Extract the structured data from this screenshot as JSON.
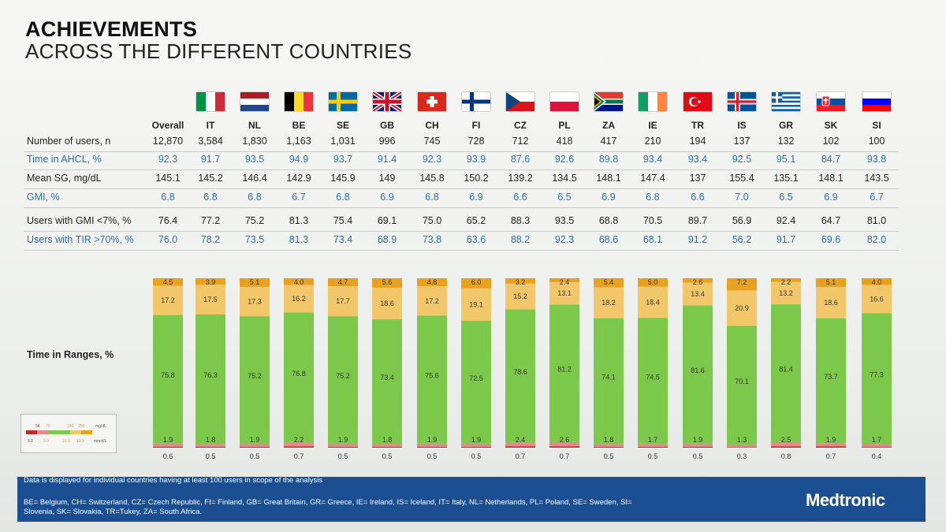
{
  "header": {
    "title": "ACHIEVEMENTS",
    "subtitle": "ACROSS THE DIFFERENT COUNTRIES"
  },
  "columns": [
    "Overall",
    "IT",
    "NL",
    "BE",
    "SE",
    "GB",
    "CH",
    "FI",
    "CZ",
    "PL",
    "ZA",
    "IE",
    "TR",
    "IS",
    "GR",
    "SK",
    "SI"
  ],
  "rows": [
    {
      "label": "Number of users, n",
      "values": [
        "12,870",
        "3,584",
        "1,830",
        "1,163",
        "1,031",
        "996",
        "745",
        "728",
        "712",
        "418",
        "417",
        "210",
        "194",
        "137",
        "132",
        "102",
        "100"
      ]
    },
    {
      "label": "Time in AHCL, %",
      "values": [
        "92.3",
        "91.7",
        "93.5",
        "94.9",
        "93.7",
        "91.4",
        "92.3",
        "93.9",
        "87.6",
        "92.6",
        "89.8",
        "93.4",
        "93.4",
        "92.5",
        "95.1",
        "84.7",
        "93.8"
      ]
    },
    {
      "label": "Mean SG, mg/dL",
      "values": [
        "145.1",
        "145.2",
        "146.4",
        "142.9",
        "145.9",
        "149",
        "145.8",
        "150.2",
        "139.2",
        "134.5",
        "148.1",
        "147.4",
        "137",
        "155.4",
        "135.1",
        "148.1",
        "143.5"
      ]
    },
    {
      "label": "GMI, %",
      "values": [
        "6.8",
        "6.8",
        "6.8",
        "6.7",
        "6.8",
        "6.9",
        "6.8",
        "6.9",
        "6.6",
        "6.5",
        "6.9",
        "6.8",
        "6.6",
        "7.0",
        "6.5",
        "6.9",
        "6.7"
      ]
    },
    {
      "label": "Users with GMI <7%, %",
      "values": [
        "76.4",
        "77.2",
        "75.2",
        "81.3",
        "75.4",
        "69.1",
        "75.0",
        "65.2",
        "88.3",
        "93.5",
        "68.8",
        "70.5",
        "89.7",
        "56.9",
        "92.4",
        "64.7",
        "81.0"
      ]
    },
    {
      "label": "Users with TIR >70%, %",
      "values": [
        "76.0",
        "78.2",
        "73.5",
        "81.3",
        "73.4",
        "68.9",
        "73.8",
        "63.6",
        "88.2",
        "92.3",
        "68.6",
        "68.1",
        "91.2",
        "56.2",
        "91.7",
        "69.6",
        "82.0"
      ]
    }
  ],
  "chart_data": {
    "type": "bar",
    "stacked": true,
    "title": "Time in Ranges, %",
    "categories": [
      "Overall",
      "IT",
      "NL",
      "BE",
      "SE",
      "GB",
      "CH",
      "FI",
      "CZ",
      "PL",
      "ZA",
      "IE",
      "TR",
      "IS",
      "GR",
      "SK",
      "SI"
    ],
    "series": [
      {
        "values": [
          0.6,
          0.5,
          0.5,
          0.7,
          0.5,
          0.5,
          0.5,
          0.5,
          0.7,
          0.7,
          0.5,
          0.5,
          0.5,
          0.3,
          0.8,
          0.7,
          0.4
        ],
        "color": "#c62828"
      },
      {
        "values": [
          1.9,
          1.8,
          1.9,
          2.2,
          1.9,
          1.8,
          1.9,
          1.9,
          2.4,
          2.6,
          1.8,
          1.7,
          1.9,
          1.3,
          2.5,
          1.9,
          1.7
        ],
        "color": "#e48a8a"
      },
      {
        "values": [
          75.8,
          76.3,
          75.2,
          76.8,
          75.2,
          73.4,
          75.6,
          72.5,
          78.6,
          81.2,
          74.1,
          74.5,
          81.6,
          70.1,
          81.4,
          73.7,
          77.3
        ],
        "color": "#7cc84a"
      },
      {
        "values": [
          17.2,
          17.5,
          17.3,
          16.2,
          17.7,
          18.6,
          17.2,
          19.1,
          15.2,
          13.1,
          18.2,
          18.4,
          13.4,
          20.9,
          13.2,
          18.6,
          16.6
        ],
        "color": "#f2c76a"
      },
      {
        "values": [
          4.5,
          3.9,
          5.1,
          4.0,
          4.7,
          5.6,
          4.8,
          6.0,
          3.2,
          2.4,
          5.4,
          5.0,
          2.6,
          7.2,
          2.2,
          5.1,
          4.0
        ],
        "color": "#e9a21f"
      }
    ]
  },
  "legend": {
    "mgdl_ticks": [
      "54",
      "70",
      "180",
      "250"
    ],
    "mgdl_unit": "mg/dL",
    "mmol_ticks": [
      "3.0",
      "3.9",
      "10.0",
      "13.9"
    ],
    "mmol_unit": "mmol/L"
  },
  "footer": {
    "note": "Data is displayed for individual countries having at least 100 users in scope of the analysis",
    "abbreviations": "BE= Belgium, CH= Switzerland, CZ= Czech Republic, FI= Finland, GB= Great Britain, GR= Greece, IE= Ireland, IS= Iceland, IT= Italy, NL= Netherlands, PL= Poland, SE= Sweden, SI= Slovenia, SK= Slovakia, TR=Tukey, ZA= South Africa.",
    "logo": "Medtronic"
  },
  "colors": {
    "very_low": "#c62828",
    "low": "#e48a8a",
    "in_range": "#7cc84a",
    "high": "#f2c76a",
    "very_high": "#e9a21f",
    "accent_blue": "#2a6fb0",
    "footer_bg": "#1c4f92"
  }
}
